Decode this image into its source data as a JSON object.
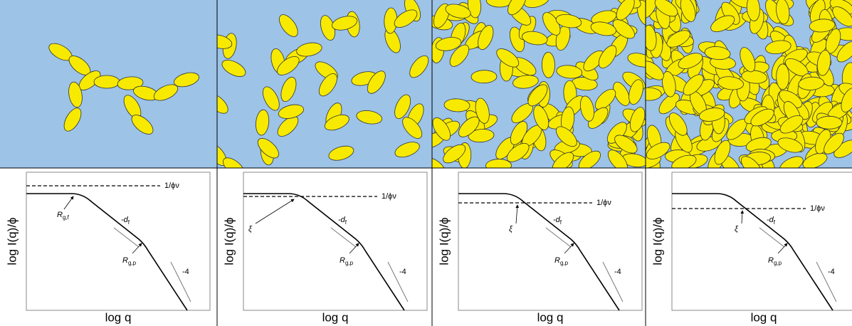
{
  "panels": [
    {
      "y_label": "log I(q)/ϕ",
      "x_label": "log q",
      "level_label": "1/ϕν",
      "knee": {
        "base": "R",
        "sub": "g,f"
      },
      "slope_label": {
        "base": "-d",
        "sub": "f"
      },
      "rgp": {
        "base": "R",
        "sub": "g,p"
      },
      "porod": "-4"
    },
    {
      "y_label": "log I(q)/ϕ",
      "x_label": "log q",
      "level_label": "1/ϕν",
      "knee": {
        "base": "ξ",
        "sub": ""
      },
      "slope_label": {
        "base": "-d",
        "sub": "f"
      },
      "rgp": {
        "base": "R",
        "sub": "g,p"
      },
      "porod": "-4"
    },
    {
      "y_label": "log I(q)/ϕ",
      "x_label": "log q",
      "level_label": "1/ϕν",
      "knee": {
        "base": "ξ",
        "sub": ""
      },
      "slope_label": {
        "base": "-d",
        "sub": "f"
      },
      "rgp": {
        "base": "R",
        "sub": "g,p"
      },
      "porod": "-4"
    },
    {
      "y_label": "log I(q)/ϕ",
      "x_label": "log q",
      "level_label": "1/ϕν",
      "knee": {
        "base": "ξ",
        "sub": ""
      },
      "slope_label": {
        "base": "-d",
        "sub": "f"
      },
      "rgp": {
        "base": "R",
        "sub": "g,p"
      },
      "porod": "-4"
    }
  ]
}
